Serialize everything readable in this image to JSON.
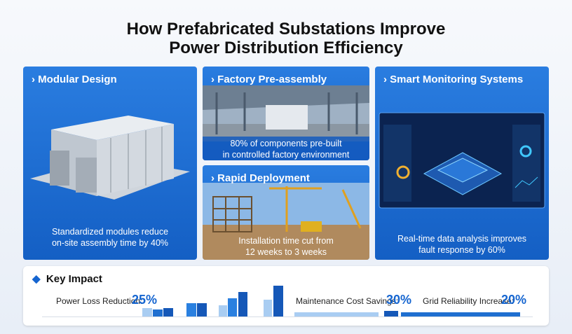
{
  "header": {
    "title_lines": [
      "How Prefabricated Substations Improve",
      "Power Distribution Efficiency"
    ]
  },
  "panels": [
    {
      "title": "Modular Design",
      "caption": [
        "Standardized modules reduce",
        "on-site assembly time by 40%"
      ]
    },
    {
      "title": "Factory Pre-assembly",
      "caption": [
        "80% of components pre-built",
        "in controlled factory environment"
      ]
    },
    {
      "title": "Rapid Deployment",
      "caption": [
        "Installation time cut from",
        "12 weeks to 3 weeks"
      ]
    },
    {
      "title": "Smart Monitoring Systems",
      "caption": [
        "Real-time data analysis improves",
        "fault response by 60%"
      ]
    }
  ],
  "key_impact": {
    "title": "Key Impact",
    "metrics": [
      {
        "label": "Power Loss Reduction:",
        "value": "25%"
      },
      {
        "label": "Maintenance Cost Savings:",
        "value": "30%"
      },
      {
        "label": "Grid Reliability Increase:",
        "value": "20%"
      }
    ]
  }
}
